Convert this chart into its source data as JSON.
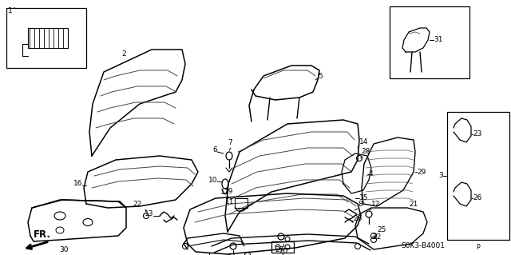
{
  "bg_color": "#ffffff",
  "line_color": "#000000",
  "fig_width": 6.4,
  "fig_height": 3.19,
  "dpi": 100,
  "bottom_right_text": "S0K3-B4001",
  "small_p": "p"
}
